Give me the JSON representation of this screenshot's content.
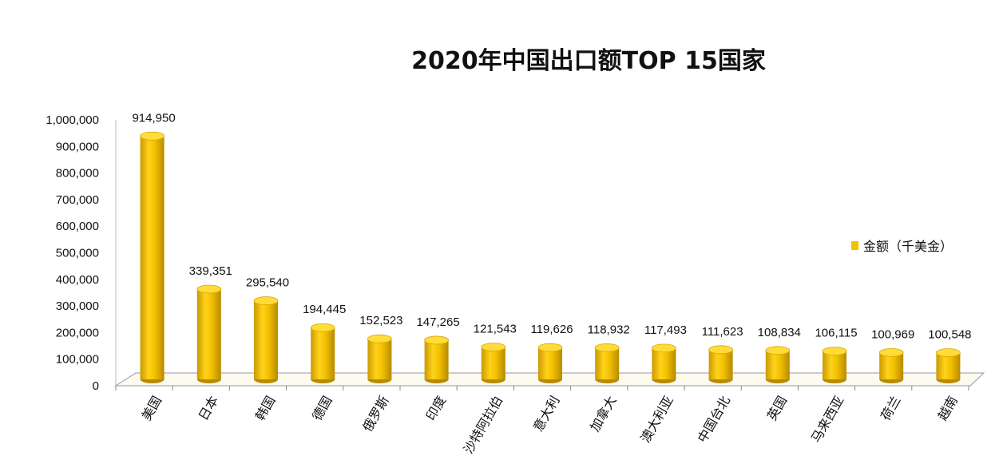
{
  "chart_data": {
    "type": "bar",
    "title": "2020年中国出口额TOP 15国家",
    "xlabel": "",
    "ylabel": "",
    "ylim": [
      0,
      1000000
    ],
    "yticks": [
      "0",
      "100,000",
      "200,000",
      "300,000",
      "400,000",
      "500,000",
      "600,000",
      "700,000",
      "800,000",
      "900,000",
      "1,000,000"
    ],
    "categories": [
      "美国",
      "日本",
      "韩国",
      "德国",
      "俄罗斯",
      "印度",
      "沙特阿拉伯",
      "意大利",
      "加拿大",
      "澳大利亚",
      "中国台北",
      "英国",
      "马来西亚",
      "荷兰",
      "越南"
    ],
    "series": [
      {
        "name": "金额（千美金）",
        "color": "#f2c200",
        "values": [
          914950,
          339351,
          295540,
          194445,
          152523,
          147265,
          121543,
          119626,
          118932,
          117493,
          111623,
          108834,
          106115,
          100969,
          100548
        ],
        "labels": [
          "914,950",
          "339,351",
          "295,540",
          "194,445",
          "152,523",
          "147,265",
          "121,543",
          "119,626",
          "118,932",
          "117,493",
          "111,623",
          "108,834",
          "106,115",
          "100,969",
          "100,548"
        ]
      }
    ],
    "legend_position": "right",
    "grid": false
  }
}
